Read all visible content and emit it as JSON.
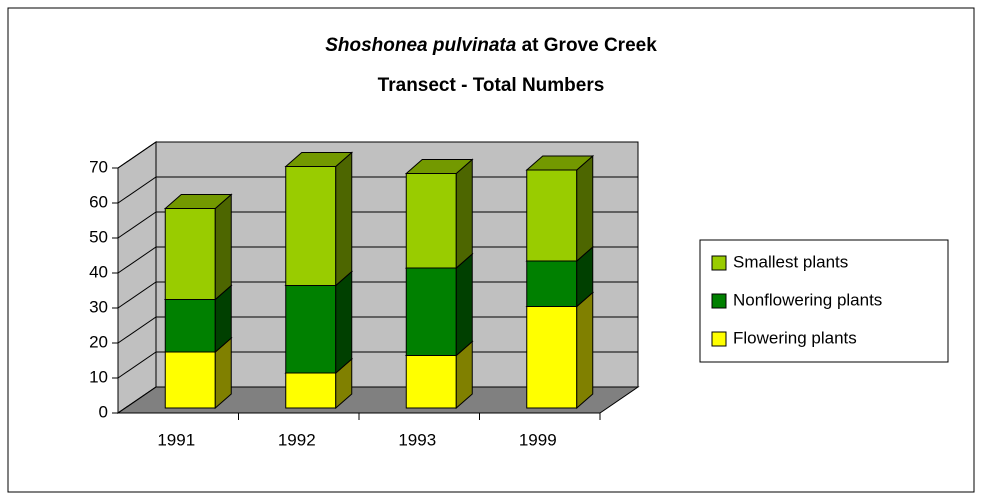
{
  "chart_data": {
    "type": "bar3d_stacked",
    "title": {
      "species": "Shoshonea pulvinata",
      "rest": "at Grove Creek",
      "line2": "Transect - Total Numbers"
    },
    "categories": [
      "1991",
      "1992",
      "1993",
      "1999"
    ],
    "series": [
      {
        "name": "Flowering plants",
        "color": "#ffff00",
        "values": [
          16,
          10,
          15,
          29
        ]
      },
      {
        "name": "Nonflowering plants",
        "color": "#008000",
        "values": [
          15,
          25,
          25,
          13
        ]
      },
      {
        "name": "Smallest plants",
        "color": "#99cc00",
        "values": [
          26,
          34,
          27,
          26
        ]
      }
    ],
    "ylim": [
      0,
      70
    ],
    "yticks": [
      0,
      10,
      20,
      30,
      40,
      50,
      60,
      70
    ],
    "grid": true,
    "legend": "right"
  }
}
